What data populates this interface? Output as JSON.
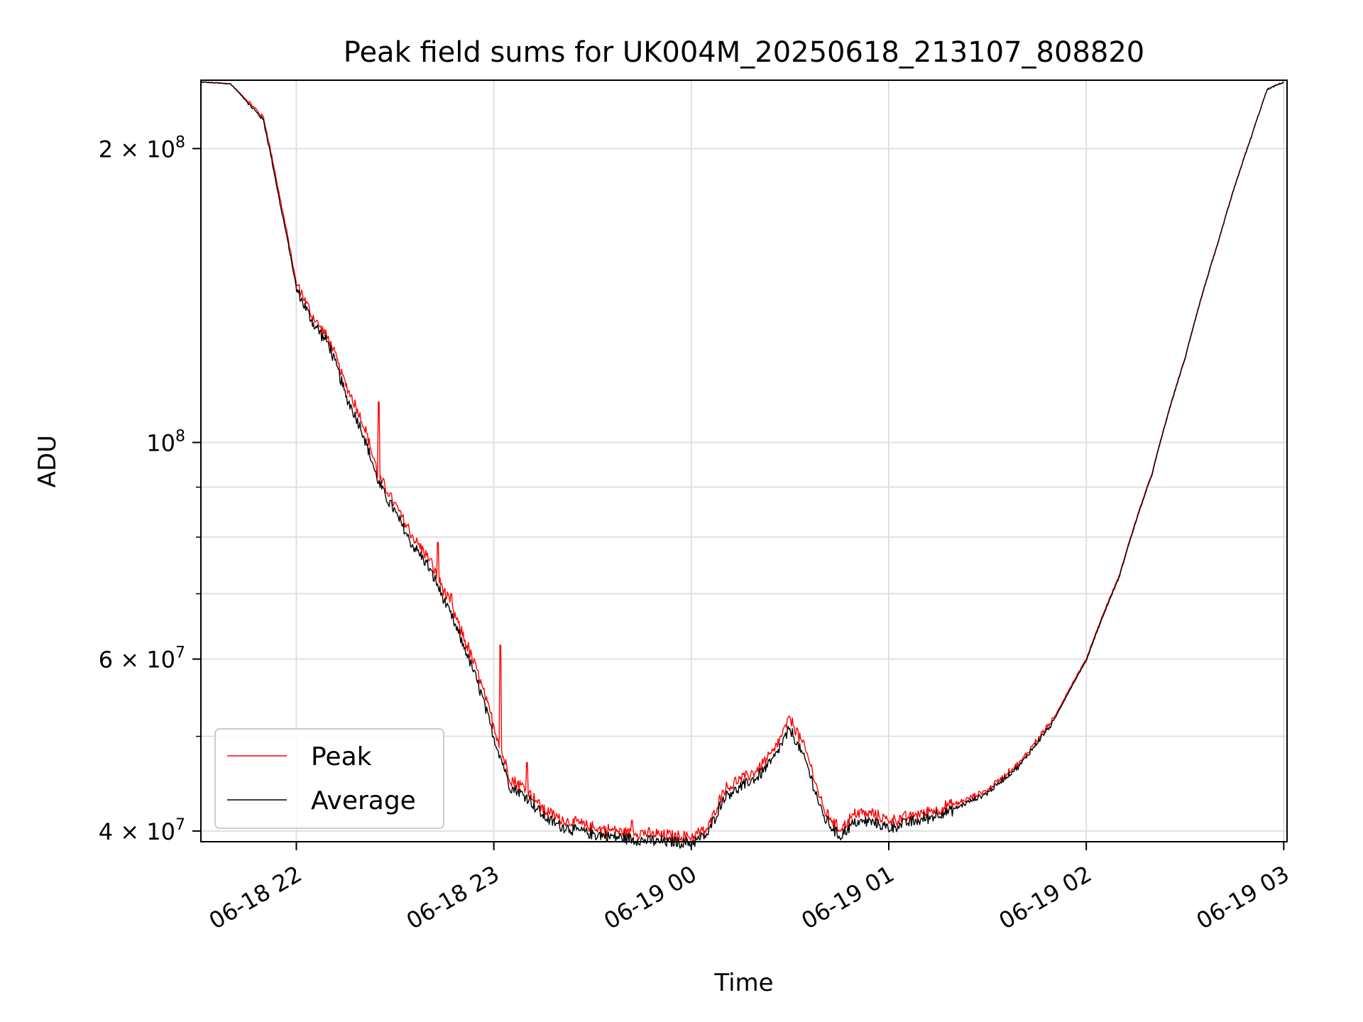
{
  "chart_data": {
    "type": "line",
    "title": "Peak field sums for UK004M_20250618_213107_808820",
    "xlabel": "Time",
    "ylabel": "ADU",
    "yscale": "log",
    "ylim": [
      39000000,
      235000000
    ],
    "xlim": [
      "06-18 21:31",
      "06-19 03:01"
    ],
    "x_ticks": [
      "06-18 22",
      "06-18 23",
      "06-19 00",
      "06-19 01",
      "06-19 02",
      "06-19 03"
    ],
    "y_ticks": [
      {
        "value": 40000000,
        "mantissa": "4",
        "exp": "7"
      },
      {
        "value": 60000000,
        "mantissa": "6",
        "exp": "7"
      },
      {
        "value": 100000000,
        "mantissa": "",
        "exp": "8"
      },
      {
        "value": 200000000,
        "mantissa": "2",
        "exp": "8"
      }
    ],
    "grid": true,
    "legend_position": "bottom-left",
    "colors": {
      "peak": "#ff0000",
      "average": "#000000",
      "grid": "#e0e0e0"
    },
    "x": [
      "21:31",
      "21:40",
      "21:50",
      "21:55",
      "22:00",
      "22:05",
      "22:10",
      "22:15",
      "22:20",
      "22:25",
      "22:30",
      "22:35",
      "22:40",
      "22:45",
      "22:50",
      "22:55",
      "23:00",
      "23:05",
      "23:10",
      "23:15",
      "23:20",
      "23:30",
      "23:40",
      "23:50",
      "00:00",
      "00:05",
      "00:10",
      "00:15",
      "00:20",
      "00:25",
      "00:30",
      "00:35",
      "00:40",
      "00:45",
      "00:50",
      "00:55",
      "01:00",
      "01:10",
      "01:20",
      "01:30",
      "01:40",
      "01:50",
      "02:00",
      "02:10",
      "02:20",
      "02:30",
      "02:40",
      "02:50",
      "02:55",
      "03:00"
    ],
    "series": [
      {
        "name": "Peak",
        "values": [
          234,
          233,
          215,
          178,
          145,
          134,
          127,
          114,
          105,
          92,
          86,
          80,
          76,
          70,
          64,
          58,
          51,
          45,
          44,
          42,
          41,
          40.2,
          39.8,
          39.5,
          39.3,
          40,
          44,
          45,
          46,
          48,
          52,
          48,
          42,
          40,
          41.5,
          41.5,
          40.8,
          41.5,
          42.5,
          44,
          47,
          52,
          60,
          73,
          93,
          122,
          160,
          205,
          230,
          234
        ],
        "spikes": [
          {
            "x": "22:25",
            "y": 110
          },
          {
            "x": "22:26",
            "y": 88
          },
          {
            "x": "22:27",
            "y": 85
          },
          {
            "x": "22:43",
            "y": 79
          },
          {
            "x": "22:47",
            "y": 70
          },
          {
            "x": "23:02",
            "y": 62
          },
          {
            "x": "23:10",
            "y": 47
          },
          {
            "x": "23:42",
            "y": 41
          },
          {
            "x": "00:32",
            "y": 51
          }
        ]
      },
      {
        "name": "Average",
        "values": [
          234,
          233,
          214,
          176,
          144,
          133,
          126,
          112,
          103,
          91,
          85,
          79,
          75,
          69,
          63,
          57,
          50,
          44.5,
          43.5,
          41.5,
          40.6,
          39.8,
          39.4,
          39.1,
          39,
          39.8,
          43.5,
          44.5,
          45.5,
          47.5,
          51,
          47,
          41.5,
          39.6,
          41,
          41,
          40.4,
          41.2,
          42.2,
          43.8,
          46.8,
          51.8,
          59.8,
          72.8,
          92.8,
          121.8,
          159.8,
          204.8,
          230,
          234
        ]
      }
    ]
  }
}
